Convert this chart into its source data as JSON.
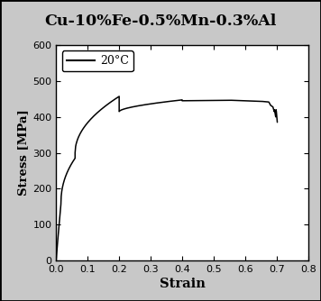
{
  "title": "Cu-10%Fe-0.5%Mn-0.3%Al",
  "title_bg_color": "#ffffaa",
  "xlabel": "Strain",
  "ylabel": "Stress [MPa]",
  "xlim": [
    0.0,
    0.8
  ],
  "ylim": [
    0,
    600
  ],
  "xticks": [
    0.0,
    0.1,
    0.2,
    0.3,
    0.4,
    0.5,
    0.6,
    0.7,
    0.8
  ],
  "yticks": [
    0,
    100,
    200,
    300,
    400,
    500,
    600
  ],
  "legend_label": "20°C",
  "line_color": "#000000",
  "plot_bg_color": "#ffffff",
  "outer_bg_color": "#c8c8c8",
  "border_color": "#000000"
}
